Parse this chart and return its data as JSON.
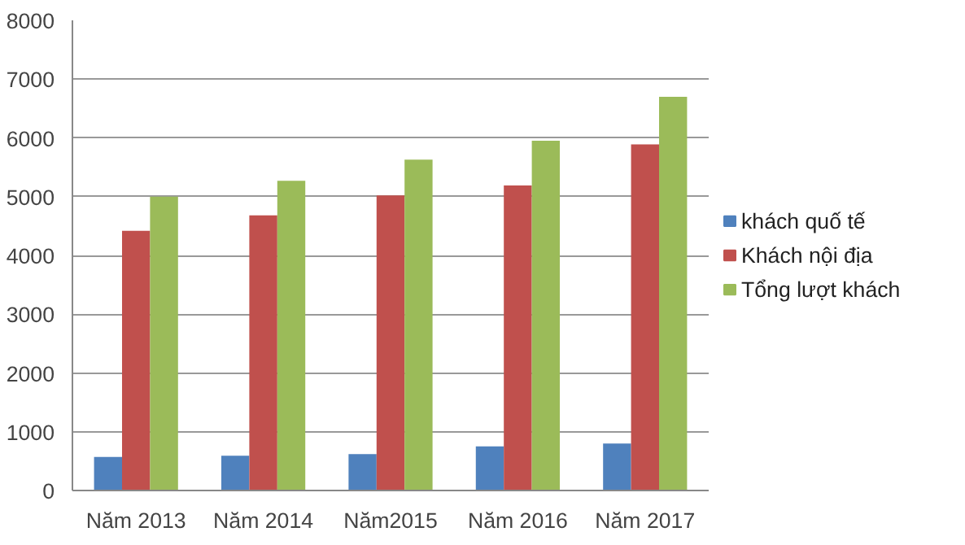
{
  "chart_data": {
    "type": "bar",
    "categories": [
      "Năm 2013",
      "Năm 2014",
      "Năm2015",
      "Năm 2016",
      "Năm 2017"
    ],
    "series": [
      {
        "name": "khách quố tế",
        "color": "#4f81bd",
        "values": [
          570,
          590,
          620,
          750,
          800
        ]
      },
      {
        "name": "Khách nội địa",
        "color": "#c0504d",
        "values": [
          4420,
          4680,
          5020,
          5190,
          5890
        ]
      },
      {
        "name": "Tổng lượt khách",
        "color": "#9bbb59",
        "values": [
          5000,
          5270,
          5630,
          5950,
          6700
        ]
      }
    ],
    "ylim": [
      0,
      8000
    ],
    "yticks": [
      0,
      1000,
      2000,
      3000,
      4000,
      5000,
      6000,
      7000,
      8000
    ],
    "grid": "y",
    "legend": "right"
  }
}
